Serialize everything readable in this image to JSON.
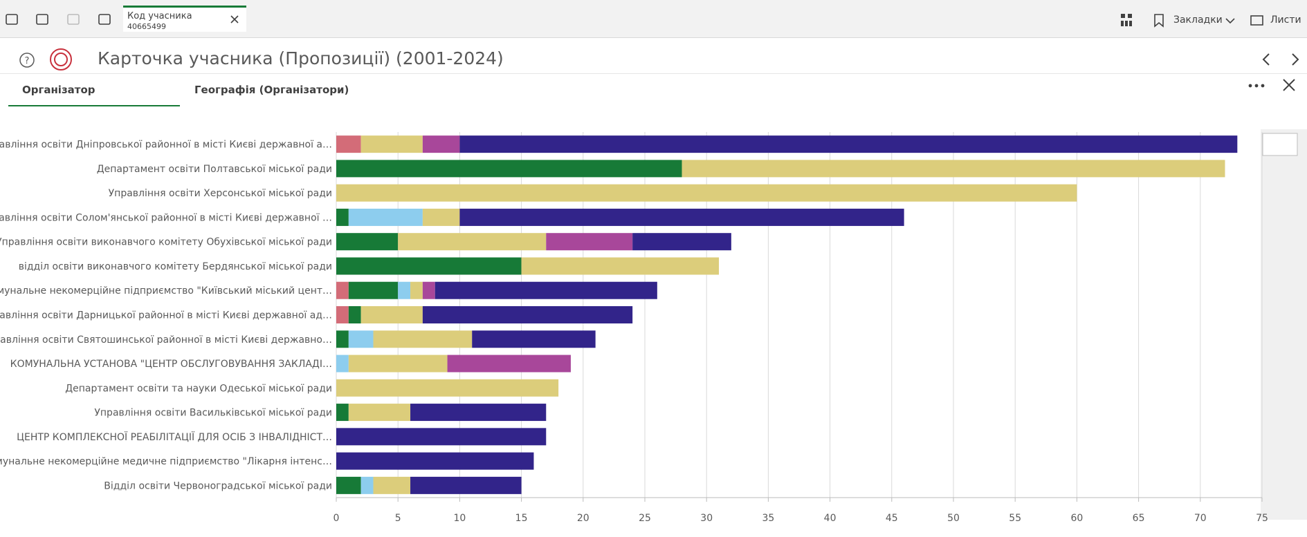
{
  "toolbar": {
    "selection": {
      "field": "Код учасника",
      "value": "40665499"
    },
    "bookmarks": "Закладки",
    "sheets": "Листи"
  },
  "sheet": {
    "title": "Карточка учасника (Пропозиції) (2001-2024)"
  },
  "tabs": [
    "Організатор",
    "Географія (Організатори)"
  ],
  "chart_data": {
    "type": "stacked-bar-horizontal",
    "categories": [
      "Управління освіти Дніпровської районної в місті Києві державної а…",
      "Департамент освіти Полтавської міської ради",
      "Управління освіти Херсонської міської ради",
      "Управління освіти Солом'янської районної в місті Києві державної …",
      "Управління освіти виконавчого комітету Обухівської міської ради",
      "відділ освіти виконавчого комітету Бердянської міської ради",
      "Комунальне некомерційне підприємство \"Київський міський цент…",
      "Управління освіти Дарницької районної в місті Києві державної ад…",
      "Управління освіти Святошинської районної в місті Києві державно…",
      "КОМУНАЛЬНА УСТАНОВА \"ЦЕНТР ОБСЛУГОВУВАННЯ ЗАКЛАДІ…",
      "Департамент освіти та науки Одеської міської ради",
      "Управління освіти Васильківської міської ради",
      "ЦЕНТР КОМПЛЕКСНОЇ РЕАБІЛІТАЦІЇ ДЛЯ ОСІБ З ІНВАЛІДНІСТ…",
      "Комунальне некомерційне медичне підприємство \"Лікарня інтенс…",
      "Відділ освіти Червоноградської міської ради"
    ],
    "series": [
      {
        "color": "#d36c78",
        "values": [
          2,
          0,
          0,
          0,
          0,
          0,
          1,
          1,
          0,
          0,
          0,
          0,
          0,
          0,
          0
        ]
      },
      {
        "color": "#177a37",
        "values": [
          0,
          28,
          0,
          1,
          5,
          15,
          4,
          1,
          1,
          0,
          0,
          1,
          0,
          0,
          2
        ]
      },
      {
        "color": "#8dcdee",
        "values": [
          0,
          0,
          0,
          6,
          0,
          0,
          1,
          0,
          2,
          1,
          0,
          0,
          0,
          0,
          1
        ]
      },
      {
        "color": "#dccd7b",
        "values": [
          5,
          44,
          60,
          3,
          12,
          16,
          1,
          5,
          8,
          8,
          18,
          5,
          0,
          0,
          3
        ]
      },
      {
        "color": "#a8479a",
        "values": [
          3,
          0,
          0,
          0,
          7,
          0,
          1,
          0,
          0,
          10,
          0,
          0,
          0,
          0,
          0
        ]
      },
      {
        "color": "#32248a",
        "values": [
          63,
          0,
          0,
          36,
          8,
          0,
          18,
          17,
          10,
          0,
          0,
          11,
          17,
          16,
          9
        ]
      }
    ],
    "xlim": [
      0,
      75
    ],
    "xticks": [
      0,
      5,
      10,
      15,
      20,
      25,
      30,
      35,
      40,
      45,
      50,
      55,
      60,
      65,
      70,
      75
    ],
    "grid": true
  }
}
